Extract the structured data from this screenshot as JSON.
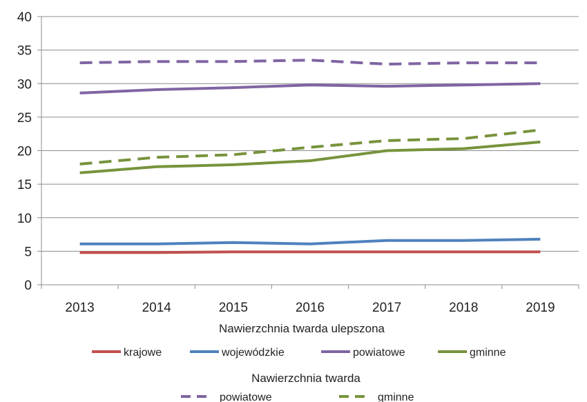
{
  "chart_data": {
    "type": "line",
    "x": [
      "2013",
      "2014",
      "2015",
      "2016",
      "2017",
      "2018",
      "2019"
    ],
    "ylim": [
      0,
      40
    ],
    "yticks": [
      0,
      5,
      10,
      15,
      20,
      25,
      30,
      35,
      40
    ],
    "grid": "horizontal",
    "legend_groups": [
      {
        "title": "Nawierzchnia twarda ulepszona",
        "series": [
          {
            "name": "krajowe",
            "color": "#C0504D",
            "style": "solid",
            "values": [
              4.8,
              4.8,
              4.9,
              4.9,
              4.9,
              4.9,
              4.9
            ]
          },
          {
            "name": "wojewódzkie",
            "color": "#4F81BD",
            "style": "solid",
            "values": [
              6.1,
              6.1,
              6.3,
              6.1,
              6.6,
              6.6,
              6.8
            ]
          },
          {
            "name": "powiatowe",
            "color": "#8064A2",
            "style": "solid",
            "values": [
              28.6,
              29.1,
              29.4,
              29.8,
              29.6,
              29.8,
              30.0
            ]
          },
          {
            "name": "gminne",
            "color": "#77933C",
            "style": "solid",
            "values": [
              16.7,
              17.6,
              17.9,
              18.5,
              20.0,
              20.3,
              21.3
            ]
          }
        ]
      },
      {
        "title": "Nawierzchnia twarda",
        "series": [
          {
            "name": "powiatowe",
            "color": "#8064A2",
            "style": "dashed",
            "values": [
              33.1,
              33.3,
              33.3,
              33.5,
              32.9,
              33.1,
              33.1
            ]
          },
          {
            "name": "gminne",
            "color": "#77933C",
            "style": "dashed",
            "values": [
              18.0,
              19.0,
              19.4,
              20.5,
              21.5,
              21.8,
              23.1
            ]
          }
        ]
      }
    ]
  }
}
